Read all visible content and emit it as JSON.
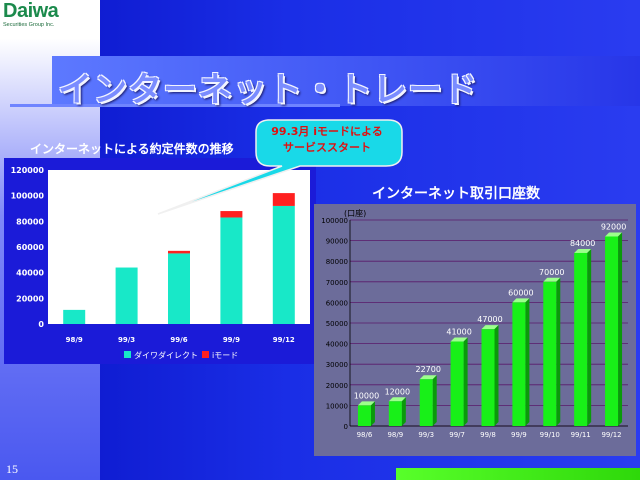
{
  "logo": {
    "main": "Daiwa",
    "sub": "Securities Group Inc."
  },
  "slide_title": "インターネット・トレード",
  "page_number": "15",
  "callout": {
    "line1": "99.3月 iモードによる",
    "line2": "サービススタート"
  },
  "chart_data": [
    {
      "type": "bar",
      "title": "インターネットによる約定件数の推移",
      "categories": [
        "98/9",
        "99/3",
        "99/6",
        "99/9",
        "99/12"
      ],
      "series": [
        {
          "name": "ダイワダイレクト",
          "values": [
            11000,
            44000,
            55000,
            83000,
            92000
          ],
          "color": "#18e8c8"
        },
        {
          "name": "iモード",
          "values": [
            0,
            0,
            2000,
            5000,
            10000
          ],
          "color": "#ff2020"
        }
      ],
      "ylim": [
        0,
        120000
      ],
      "yticks": [
        "0",
        "20000",
        "40000",
        "60000",
        "80000",
        "100000",
        "120000"
      ],
      "xlabel": "",
      "ylabel": "",
      "legend": "bottom",
      "stacked": true,
      "grid": false
    },
    {
      "type": "bar",
      "title": "インターネット取引口座数",
      "unit": "(口座)",
      "categories": [
        "98/6",
        "98/9",
        "99/3",
        "99/7",
        "99/8",
        "99/9",
        "99/10",
        "99/11",
        "99/12"
      ],
      "values": [
        10000,
        12000,
        22700,
        41000,
        47000,
        60000,
        70000,
        84000,
        92000
      ],
      "data_labels": [
        "10000",
        "12000",
        "22700",
        "41000",
        "47000",
        "60000",
        "70000",
        "84000",
        "92000"
      ],
      "color": "#18f018",
      "ylim": [
        0,
        100000
      ],
      "yticks": [
        "0",
        "10000",
        "20000",
        "30000",
        "40000",
        "50000",
        "60000",
        "70000",
        "80000",
        "90000",
        "100000"
      ],
      "xlabel": "",
      "ylabel": "",
      "grid": true
    }
  ]
}
